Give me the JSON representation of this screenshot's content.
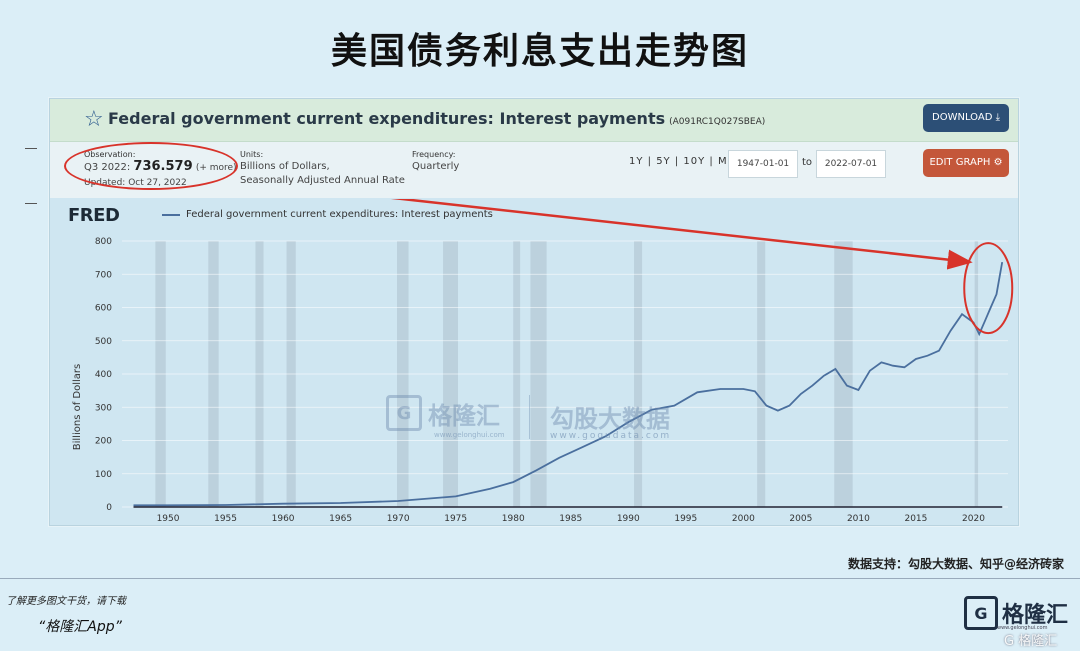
{
  "page": {
    "title": "美国债务利息支出走势图",
    "source": "数据支持：勾股大数据、知乎@经济砖家",
    "promo_line": "了解更多图文干货，请下载",
    "promo_app": "“格隆汇App”",
    "brand_name": "格隆汇",
    "brand_icon": "G",
    "brand_url": "www.gelonghui.com",
    "corner_watermark": "G 格隆汇"
  },
  "fred": {
    "series_title": "Federal government current expenditures: Interest payments",
    "series_code": "(A091RC1Q027SBEA)",
    "download_label": "DOWNLOAD ⤓",
    "edit_graph_label": "EDIT GRAPH ⚙",
    "observation_label": "Observation:",
    "observation_period": "Q3 2022:",
    "observation_value": "736.579",
    "observation_more": "(+ more)",
    "updated": "Updated: Oct 27, 2022",
    "units_label": "Units:",
    "units_line1": "Billions of Dollars,",
    "units_line2": "Seasonally Adjusted Annual Rate",
    "frequency_label": "Frequency:",
    "frequency_value": "Quarterly",
    "range_links": "1Y | 5Y | 10Y | Max",
    "date_from": "1947-01-01",
    "to_label": "to",
    "date_to": "2022-07-01",
    "logo": "FRED",
    "legend": "Federal government current expenditures: Interest payments"
  },
  "watermarks": {
    "brand_icon": "G",
    "brand": "格隆汇",
    "brand_url": "www.gelonghui.com",
    "gogu": "勾股大数据",
    "gogu_url": "www.gogudata.com"
  },
  "colors": {
    "line": "#4a6f9e",
    "recession": "#b6cad6",
    "annotation": "#d8332a",
    "download_button": "#2c4f76",
    "edit_button": "#c4573a"
  },
  "chart_data": {
    "type": "line",
    "title": "Federal government current expenditures: Interest payments",
    "ylabel": "Billions of Dollars",
    "xlim": [
      1946,
      2023
    ],
    "ylim": [
      0,
      800
    ],
    "yticks": [
      0,
      100,
      200,
      300,
      400,
      500,
      600,
      700,
      800
    ],
    "xticks": [
      1950,
      1955,
      1960,
      1965,
      1970,
      1975,
      1980,
      1985,
      1990,
      1995,
      2000,
      2005,
      2010,
      2015,
      2020
    ],
    "recessions": [
      [
        1948.9,
        1949.8
      ],
      [
        1953.5,
        1954.4
      ],
      [
        1957.6,
        1958.3
      ],
      [
        1960.3,
        1961.1
      ],
      [
        1969.9,
        1970.9
      ],
      [
        1973.9,
        1975.2
      ],
      [
        1980.0,
        1980.6
      ],
      [
        1981.5,
        1982.9
      ],
      [
        1990.5,
        1991.2
      ],
      [
        2001.2,
        2001.9
      ],
      [
        2007.9,
        2009.5
      ],
      [
        2020.1,
        2020.4
      ]
    ],
    "series": [
      {
        "name": "Federal government current expenditures: Interest payments",
        "x": [
          1947,
          1950,
          1955,
          1960,
          1965,
          1970,
          1975,
          1978,
          1980,
          1982,
          1984,
          1986,
          1988,
          1990,
          1992,
          1994,
          1996,
          1998,
          2000,
          2001,
          2002,
          2003,
          2004,
          2005,
          2006,
          2007,
          2008,
          2009,
          2010,
          2011,
          2012,
          2013,
          2014,
          2015,
          2016,
          2017,
          2018,
          2019,
          2020,
          2020.5,
          2021,
          2021.5,
          2022,
          2022.5
        ],
        "y": [
          5,
          5,
          6,
          10,
          12,
          18,
          32,
          55,
          75,
          110,
          148,
          180,
          212,
          255,
          292,
          305,
          345,
          355,
          355,
          348,
          305,
          290,
          305,
          340,
          365,
          395,
          415,
          365,
          352,
          410,
          435,
          425,
          420,
          445,
          455,
          470,
          530,
          580,
          555,
          520,
          560,
          600,
          640,
          736.579
        ]
      }
    ]
  }
}
